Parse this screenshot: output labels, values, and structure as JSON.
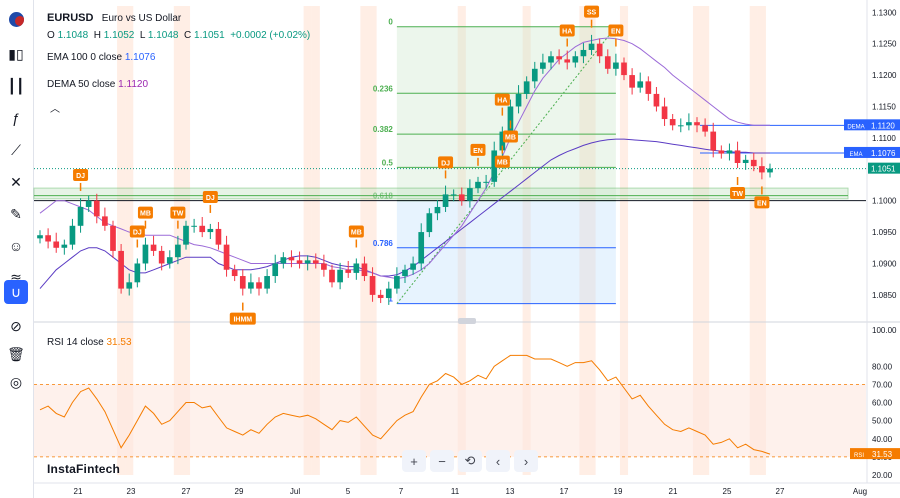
{
  "symbol": {
    "ticker": "EURUSD",
    "name": "Euro vs US Dollar"
  },
  "ohlc": {
    "o_label": "O",
    "o": "1.1048",
    "h_label": "H",
    "h": "1.1052",
    "l_label": "L",
    "l": "1.1048",
    "c_label": "C",
    "c": "1.1051",
    "change": "+0.0002 (+0.02%)"
  },
  "indicators": {
    "ema": {
      "name": "EMA",
      "params": "100 0 close",
      "value": "1.1076"
    },
    "dema": {
      "name": "DEMA",
      "params": "50 close",
      "value": "1.1120"
    },
    "rsi": {
      "name": "RSI",
      "params": "14 close",
      "value": "31.53"
    }
  },
  "brand": "InstaFintech",
  "toolbar_icons": [
    "flag-icon",
    "candles-icon",
    "bars-icon",
    "fx-icon",
    "pitchfork-icon",
    "cross-lines-icon",
    "brush-icon",
    "emoji-icon",
    "waves-icon",
    "magnet-icon",
    "eye-off-icon",
    "trash-icon",
    "snapshot-icon"
  ],
  "nav_buttons": [
    "+",
    "−",
    "⟲",
    "‹",
    "›"
  ],
  "colors": {
    "up": "#089981",
    "down": "#f23645",
    "ema": "#2962ff",
    "dema": "#9c27b0",
    "rsi": "#f57c00",
    "fib_green": "#4caf50",
    "fib_blue": "#2962ff",
    "marker": "#f57c00"
  },
  "chart_data": {
    "type": "candlestick",
    "x_ticks": [
      "21",
      "23",
      "27",
      "29",
      "Jul",
      "5",
      "7",
      "11",
      "13",
      "17",
      "19",
      "21",
      "25",
      "27",
      "Aug"
    ],
    "price_axis": {
      "ticks": [
        "1.1300",
        "1.1250",
        "1.1200",
        "1.1150",
        "1.1100",
        "1.1050",
        "1.1000",
        "1.0950",
        "1.0900",
        "1.0850"
      ],
      "range": [
        1.081,
        1.131
      ]
    },
    "price_labels": [
      {
        "name": "DEMA",
        "value": "1.1120"
      },
      {
        "name": "EMA",
        "value": "1.1076"
      },
      {
        "name": "",
        "value": "1.1051"
      }
    ],
    "rsi_axis": {
      "ticks": [
        "100.00",
        "80.00",
        "70.00",
        "60.00",
        "50.00",
        "40.00",
        "30.00",
        "20.00"
      ],
      "range": [
        20,
        100
      ],
      "bands": [
        30,
        70
      ]
    },
    "rsi_label": {
      "name": "RSI",
      "value": "31.53"
    },
    "fib_levels": [
      {
        "label": "0",
        "value": 1.1277
      },
      {
        "label": "0.236",
        "value": 1.1171
      },
      {
        "label": "0.382",
        "value": 1.1106
      },
      {
        "label": "0.5",
        "value": 1.1053
      },
      {
        "label": "0.618",
        "value": 1.1
      },
      {
        "label": "0.786",
        "value": 1.0925
      },
      {
        "label": "1",
        "value": 1.0836
      }
    ],
    "event_markers": [
      {
        "label": "DJ",
        "i": 5,
        "pos": "above"
      },
      {
        "label": "DJ",
        "i": 12,
        "pos": "above"
      },
      {
        "label": "MB",
        "i": 13,
        "pos": "above"
      },
      {
        "label": "TW",
        "i": 17,
        "pos": "above"
      },
      {
        "label": "DJ",
        "i": 21,
        "pos": "above"
      },
      {
        "label": "IHMM",
        "i": 25,
        "pos": "below"
      },
      {
        "label": "MB",
        "i": 39,
        "pos": "above"
      },
      {
        "label": "DJ",
        "i": 50,
        "pos": "above"
      },
      {
        "label": "EN",
        "i": 54,
        "pos": "above"
      },
      {
        "label": "HA",
        "i": 57,
        "pos": "above"
      },
      {
        "label": "MB",
        "i": 57,
        "pos": "below"
      },
      {
        "label": "MB",
        "i": 58,
        "pos": "below"
      },
      {
        "label": "HA",
        "i": 65,
        "pos": "above"
      },
      {
        "label": "SS",
        "i": 68,
        "pos": "above"
      },
      {
        "label": "EN",
        "i": 71,
        "pos": "above"
      },
      {
        "label": "TW",
        "i": 86,
        "pos": "below"
      },
      {
        "label": "EN",
        "i": 89,
        "pos": "below"
      }
    ],
    "series": [
      {
        "name": "EURUSD",
        "values": [
          1.0945,
          1.0935,
          1.0925,
          1.093,
          1.096,
          1.099,
          1.1,
          1.0975,
          1.096,
          1.092,
          1.086,
          1.087,
          1.09,
          1.093,
          1.092,
          1.09,
          1.091,
          1.093,
          1.096,
          1.096,
          1.095,
          1.0955,
          1.093,
          1.089,
          1.088,
          1.086,
          1.087,
          1.086,
          1.088,
          1.09,
          1.091,
          1.0905,
          1.09,
          1.0905,
          1.09,
          1.089,
          1.087,
          1.089,
          1.0885,
          1.09,
          1.088,
          1.085,
          1.0845,
          1.086,
          1.088,
          1.089,
          1.09,
          1.095,
          1.098,
          1.099,
          1.101,
          1.101,
          1.1,
          1.102,
          1.103,
          1.103,
          1.108,
          1.111,
          1.115,
          1.117,
          1.119,
          1.121,
          1.122,
          1.123,
          1.1225,
          1.122,
          1.123,
          1.124,
          1.125,
          1.123,
          1.121,
          1.122,
          1.12,
          1.118,
          1.119,
          1.117,
          1.115,
          1.113,
          1.112,
          1.112,
          1.1125,
          1.112,
          1.111,
          1.108,
          1.1075,
          1.108,
          1.106,
          1.1065,
          1.1055,
          1.1045,
          1.1051
        ]
      },
      {
        "name": "EMA",
        "values": [
          1.086,
          1.0875,
          1.089,
          1.09,
          1.091,
          1.092,
          1.0925,
          1.0925,
          1.092,
          1.091,
          1.09,
          1.089,
          1.0885,
          1.0885,
          1.089,
          1.0895,
          1.09,
          1.0905,
          1.091,
          1.091,
          1.091,
          1.091,
          1.09,
          1.0895,
          1.089,
          1.089,
          1.089,
          1.0892,
          1.0895,
          1.09,
          1.0905,
          1.091,
          1.0912,
          1.0912,
          1.091,
          1.0905,
          1.09,
          1.0897,
          1.0895,
          1.0895,
          1.089,
          1.0885,
          1.088,
          1.088,
          1.0882,
          1.0888,
          1.0895,
          1.0905,
          1.0915,
          1.0925,
          1.0935,
          1.0945,
          1.0955,
          1.0965,
          1.0975,
          1.0985,
          1.0995,
          1.1005,
          1.1015,
          1.1025,
          1.1035,
          1.1045,
          1.1055,
          1.1065,
          1.1072,
          1.1078,
          1.1083,
          1.1088,
          1.1092,
          1.1095,
          1.1097,
          1.1098,
          1.1098,
          1.1097,
          1.1096,
          1.1095,
          1.1094,
          1.1092,
          1.109,
          1.1088,
          1.1086,
          1.1084,
          1.1082,
          1.108,
          1.1079,
          1.1078,
          1.1077,
          1.1077,
          1.1076,
          1.1076,
          1.1076
        ]
      },
      {
        "name": "DEMA",
        "values": [
          1.098,
          1.099,
          1.1,
          1.1,
          1.0995,
          1.099,
          1.0985,
          1.0975,
          1.0965,
          1.096,
          1.0955,
          1.095,
          1.095,
          1.0945,
          1.0945,
          1.0945,
          1.0945,
          1.094,
          1.0935,
          1.093,
          1.0928,
          1.0925,
          1.092,
          1.0915,
          1.091,
          1.0905,
          1.09,
          1.09,
          1.09,
          1.09,
          1.09,
          1.09,
          1.09,
          1.09,
          1.09,
          1.09,
          1.0895,
          1.0893,
          1.089,
          1.089,
          1.0888,
          1.0885,
          1.088,
          1.0878,
          1.0876,
          1.0878,
          1.0883,
          1.089,
          1.09,
          1.0915,
          1.093,
          1.0945,
          1.096,
          1.098,
          1.1,
          1.102,
          1.1045,
          1.107,
          1.11,
          1.1125,
          1.115,
          1.1175,
          1.1195,
          1.121,
          1.1225,
          1.1235,
          1.1245,
          1.1252,
          1.1255,
          1.1258,
          1.1259,
          1.1258,
          1.1255,
          1.125,
          1.1242,
          1.1232,
          1.1222,
          1.1212,
          1.12,
          1.119,
          1.118,
          1.117,
          1.116,
          1.115,
          1.114,
          1.113,
          1.1125,
          1.1122,
          1.112,
          1.112,
          1.112
        ]
      },
      {
        "name": "RSI",
        "values": [
          56,
          58,
          54,
          52,
          60,
          66,
          68,
          62,
          55,
          45,
          35,
          42,
          50,
          58,
          54,
          48,
          50,
          55,
          60,
          60,
          57,
          58,
          52,
          46,
          44,
          42,
          45,
          43,
          48,
          52,
          54,
          53,
          52,
          53,
          51,
          48,
          45,
          50,
          49,
          52,
          47,
          42,
          40,
          45,
          50,
          53,
          55,
          63,
          70,
          72,
          76,
          74,
          70,
          72,
          75,
          73,
          80,
          83,
          86,
          86,
          86,
          84,
          84,
          84,
          82,
          80,
          82,
          82,
          83,
          78,
          72,
          74,
          68,
          62,
          64,
          58,
          53,
          48,
          45,
          44,
          46,
          44,
          42,
          37,
          38,
          40,
          35,
          37,
          34,
          33,
          31.53
        ]
      }
    ]
  }
}
